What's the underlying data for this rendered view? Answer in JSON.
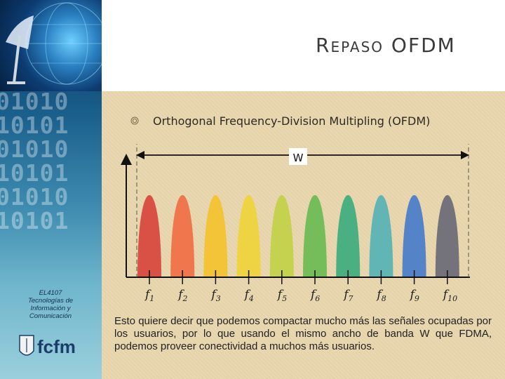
{
  "sidebar": {
    "binary_lines": [
      "01010",
      "10101",
      "01010",
      "10101",
      "01010",
      "10101"
    ],
    "course_code": "EL4107",
    "course_name_line1": "Tecnologías de",
    "course_name_line2": "Información y",
    "course_name_line3": "Comunicación",
    "logo_text": "fcfm"
  },
  "slide": {
    "title_initial": "R",
    "title_rest": "EPASO",
    "title_acronym": "OFDM",
    "bullet": "Orthogonal Frequency-Division Multipling (OFDM)",
    "bandwidth_label": "W",
    "description": "Esto quiere decir que podemos compactar mucho más las señales ocupadas por los usuarios, por lo que usando el mismo ancho de banda W que FDMA, podemos proveer conectividad a muchos más usuarios."
  },
  "chart_data": {
    "type": "diagram",
    "subcarriers": [
      {
        "label": "f",
        "sub": "1",
        "color": "#d84a3e"
      },
      {
        "label": "f",
        "sub": "2",
        "color": "#f07248"
      },
      {
        "label": "f",
        "sub": "3",
        "color": "#f4c331"
      },
      {
        "label": "f",
        "sub": "4",
        "color": "#eed33d"
      },
      {
        "label": "f",
        "sub": "5",
        "color": "#c2d24a"
      },
      {
        "label": "f",
        "sub": "6",
        "color": "#6fbc55"
      },
      {
        "label": "f",
        "sub": "7",
        "color": "#42ae7e"
      },
      {
        "label": "f",
        "sub": "8",
        "color": "#5ab3b4"
      },
      {
        "label": "f",
        "sub": "9",
        "color": "#4c7ec9"
      },
      {
        "label": "f",
        "sub": "10",
        "color": "#6e6e78"
      },
      {
        "label": "",
        "sub": "",
        "color": "#8e2c8f"
      }
    ]
  }
}
